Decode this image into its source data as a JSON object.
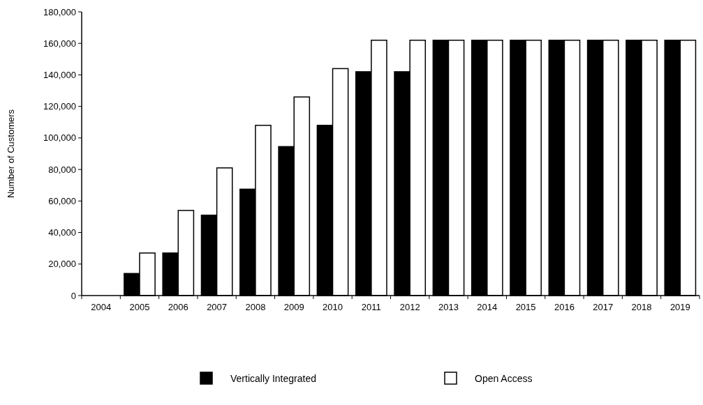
{
  "chart_data": {
    "type": "bar",
    "ylabel": "Number of Customers",
    "categories": [
      "2004",
      "2005",
      "2006",
      "2007",
      "2008",
      "2009",
      "2010",
      "2011",
      "2012",
      "2013",
      "2014",
      "2015",
      "2016",
      "2017",
      "2018",
      "2019"
    ],
    "series": [
      {
        "name": "Vertically Integrated",
        "color": "#000000",
        "values": [
          0,
          14000,
          27000,
          51000,
          67500,
          94500,
          108000,
          142000,
          142000,
          162000,
          162000,
          162000,
          162000,
          162000,
          162000,
          162000
        ]
      },
      {
        "name": "Open Access",
        "color": "#ffffff",
        "values": [
          0,
          27000,
          54000,
          81000,
          108000,
          126000,
          144000,
          162000,
          162000,
          162000,
          162000,
          162000,
          162000,
          162000,
          162000,
          162000
        ]
      }
    ],
    "ylim": [
      0,
      180000
    ],
    "yticks": [
      {
        "value": 0,
        "label": "0"
      },
      {
        "value": 20000,
        "label": "20,000"
      },
      {
        "value": 40000,
        "label": "40,000"
      },
      {
        "value": 60000,
        "label": "60,000"
      },
      {
        "value": 80000,
        "label": "80,000"
      },
      {
        "value": 100000,
        "label": "100,000"
      },
      {
        "value": 120000,
        "label": "120,000"
      },
      {
        "value": 140000,
        "label": "140,000"
      },
      {
        "value": 160000,
        "label": "160,000"
      },
      {
        "value": 180000,
        "label": "180,000"
      }
    ],
    "grid": false,
    "legend": "bottom"
  }
}
